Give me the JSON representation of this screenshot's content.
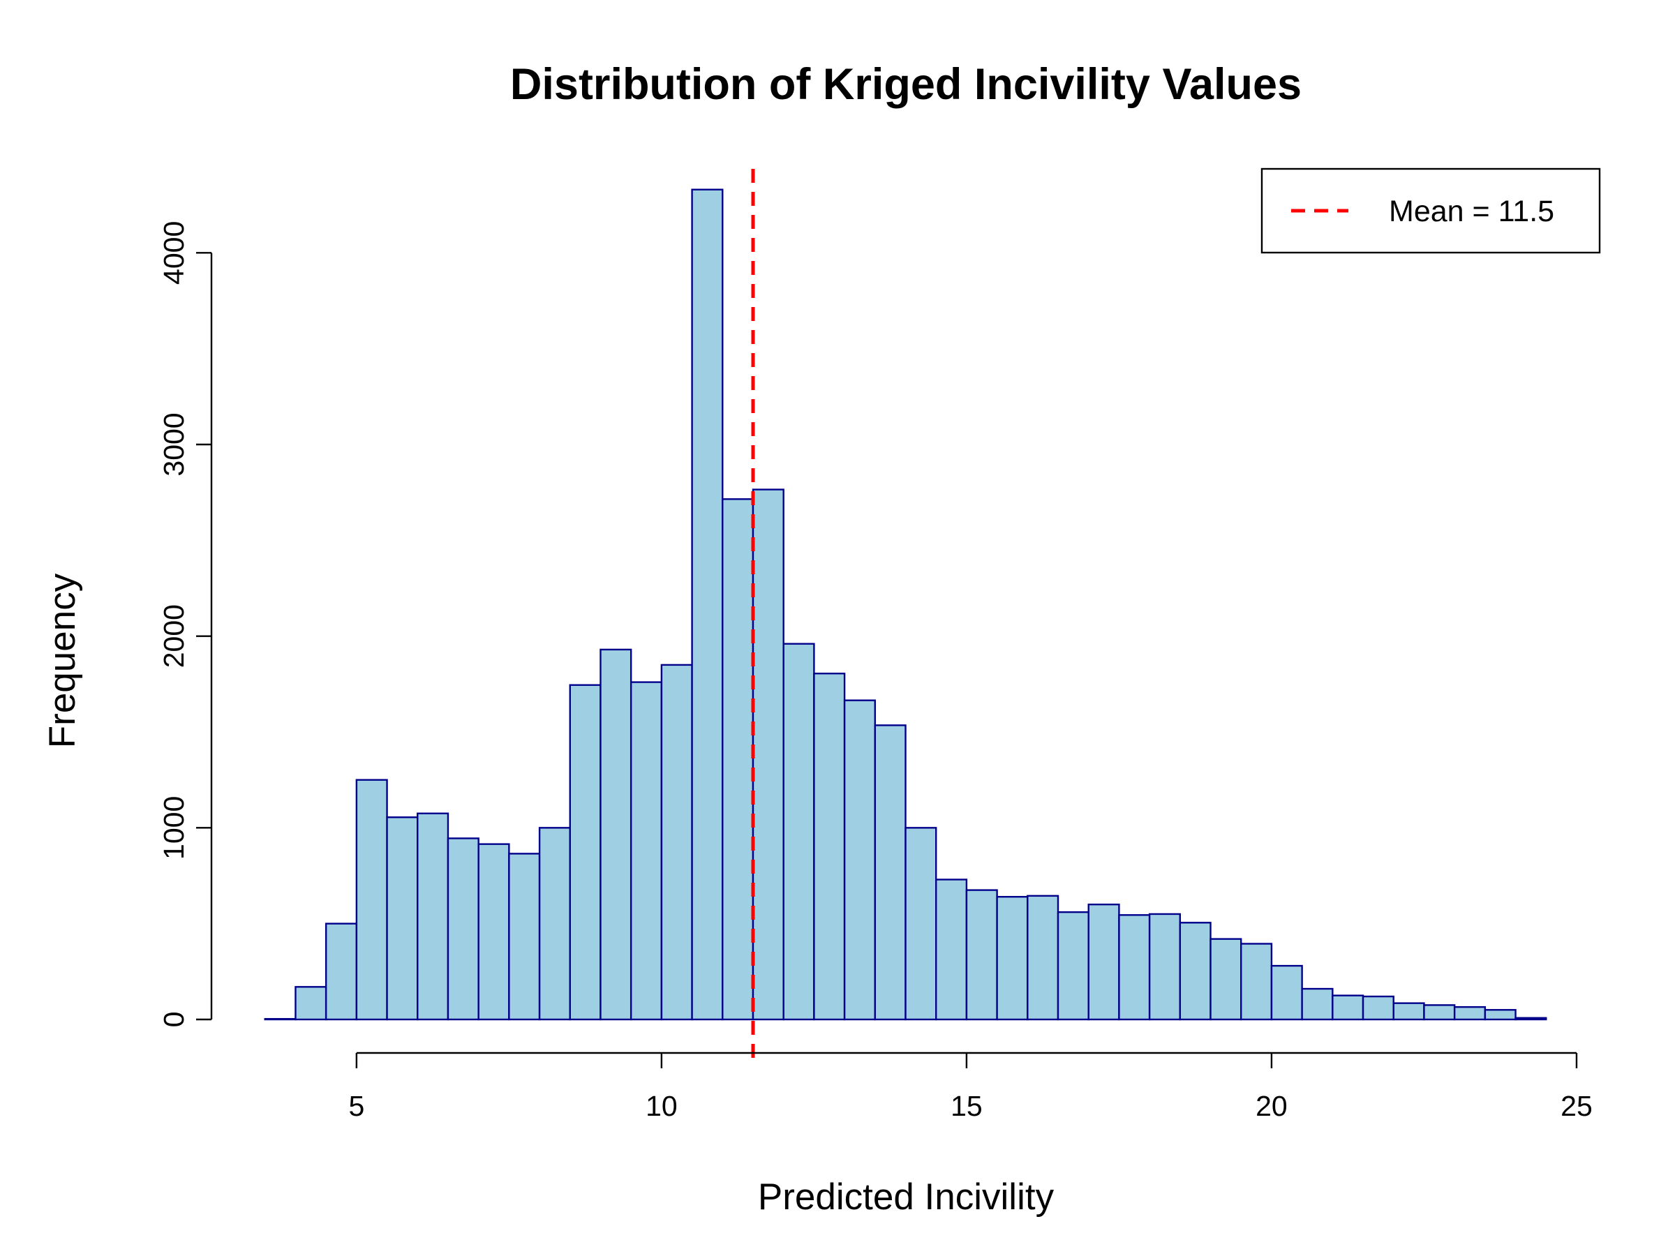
{
  "chart_data": {
    "type": "bar",
    "title": "Distribution of Kriged Incivility Values",
    "xlabel": "Predicted Incivility",
    "ylabel": "Frequency",
    "xlim": [
      3.4,
      24.6
    ],
    "ylim": [
      0,
      4500
    ],
    "x_ticks": [
      5,
      10,
      15,
      20,
      25
    ],
    "y_ticks": [
      0,
      1000,
      2000,
      3000,
      4000
    ],
    "bin_width": 0.5,
    "bins_start": [
      3.5,
      4,
      4.5,
      5,
      5.5,
      6,
      6.5,
      7,
      7.5,
      8,
      8.5,
      9,
      9.5,
      10,
      10.5,
      11,
      11.5,
      12,
      12.5,
      13,
      13.5,
      14,
      14.5,
      15,
      15.5,
      16,
      16.5,
      17,
      17.5,
      18,
      18.5,
      19,
      19.5,
      20,
      20.5,
      21,
      21.5,
      22,
      22.5,
      23,
      23.5,
      24
    ],
    "values": [
      3,
      170,
      500,
      1250,
      1055,
      1075,
      945,
      915,
      865,
      1000,
      1745,
      1930,
      1760,
      1850,
      4330,
      2715,
      2765,
      1960,
      1805,
      1665,
      1535,
      1000,
      730,
      675,
      640,
      645,
      560,
      600,
      545,
      550,
      505,
      420,
      395,
      280,
      160,
      125,
      120,
      85,
      75,
      65,
      50,
      8
    ],
    "bar_fill": "#9ecfe2",
    "bar_edge": "#00008b",
    "mean": 11.5,
    "mean_line_color": "#ff0000",
    "legend": {
      "position": "top-right",
      "label": "Mean = 11.5"
    },
    "grid": false
  }
}
